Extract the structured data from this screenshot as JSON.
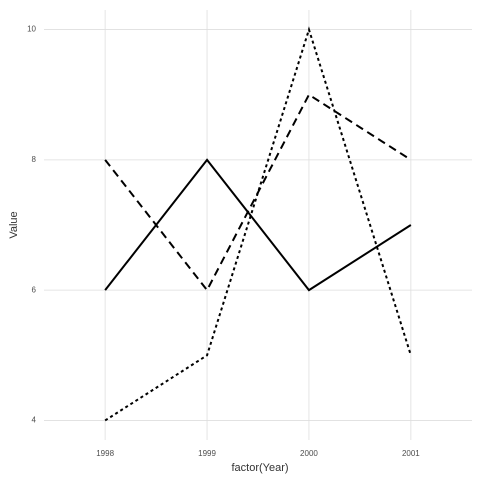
{
  "chart_data": {
    "type": "line",
    "x_label": "factor(Year)",
    "y_label": "Value",
    "categories": [
      "1998",
      "1999",
      "2000",
      "2001"
    ],
    "series": [
      {
        "color": "#000000",
        "linestyle": "solid",
        "values": [
          6,
          8,
          6,
          7
        ]
      },
      {
        "color": "#000000",
        "linestyle": "dashed",
        "values": [
          8,
          6,
          9,
          8
        ]
      },
      {
        "color": "#000000",
        "linestyle": "dotted",
        "values": [
          4,
          5,
          10,
          5
        ]
      }
    ],
    "ylim": [
      3.7,
      10.3
    ],
    "yticks": [
      4,
      6,
      8,
      10
    ],
    "grid": true
  }
}
